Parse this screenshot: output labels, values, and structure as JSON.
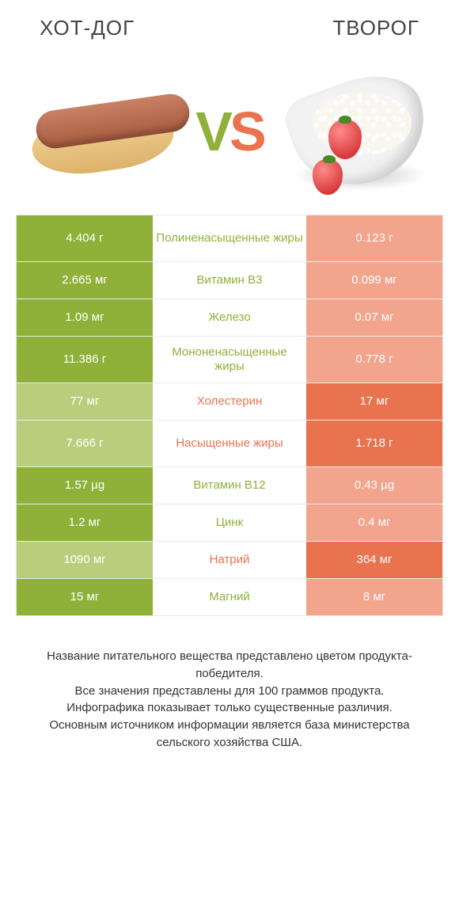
{
  "colors": {
    "green_dark": "#8fb13a",
    "green_light": "#b7cf7d",
    "orange_dark": "#e9734f",
    "orange_light": "#f2a48d",
    "mid_green_text": "#8fb13a",
    "mid_orange_text": "#e9734f"
  },
  "left_title": "ХОТ-ДОГ",
  "right_title": "ТВОРОГ",
  "vs_v": "V",
  "vs_s": "S",
  "rows": [
    {
      "left": "4.404 г",
      "mid": "Полиненасыщенные жиры",
      "right": "0.123 г",
      "winner": "L",
      "tall": true
    },
    {
      "left": "2.665 мг",
      "mid": "Витамин B3",
      "right": "0.099 мг",
      "winner": "L",
      "tall": false
    },
    {
      "left": "1.09 мг",
      "mid": "Железо",
      "right": "0.07 мг",
      "winner": "L",
      "tall": false
    },
    {
      "left": "11.386 г",
      "mid": "Мононенасыщенные жиры",
      "right": "0.778 г",
      "winner": "L",
      "tall": true
    },
    {
      "left": "77 мг",
      "mid": "Холестерин",
      "right": "17 мг",
      "winner": "R",
      "tall": false
    },
    {
      "left": "7.666 г",
      "mid": "Насыщенные жиры",
      "right": "1.718 г",
      "winner": "R",
      "tall": true
    },
    {
      "left": "1.57 µg",
      "mid": "Витамин B12",
      "right": "0.43 µg",
      "winner": "L",
      "tall": false
    },
    {
      "left": "1.2 мг",
      "mid": "Цинк",
      "right": "0.4 мг",
      "winner": "L",
      "tall": false
    },
    {
      "left": "1090 мг",
      "mid": "Натрий",
      "right": "364 мг",
      "winner": "R",
      "tall": false
    },
    {
      "left": "15 мг",
      "mid": "Магний",
      "right": "8 мг",
      "winner": "L",
      "tall": false
    }
  ],
  "footer": [
    "Название питательного вещества представлено цветом продукта-победителя.",
    "Все значения представлены для 100 граммов продукта.",
    "Инфографика показывает только существенные различия.",
    "Основным источником информации является база министерства сельского хозяйства США."
  ]
}
